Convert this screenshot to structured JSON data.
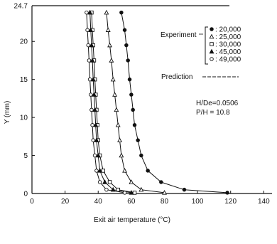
{
  "chart_data": {
    "type": "scatter",
    "xlabel": "Exit air temperature (°C)",
    "ylabel": "Y (mm)",
    "xlim": [
      0,
      145
    ],
    "ylim": [
      0,
      24.7
    ],
    "xticks": [
      0,
      20,
      40,
      60,
      80,
      100,
      120,
      140
    ],
    "xtick_labels": [
      "0",
      "20",
      "40",
      "60",
      "80",
      "100",
      "120",
      "140"
    ],
    "yticks": [
      0,
      5,
      10,
      15,
      20,
      24.7
    ],
    "ytick_labels": [
      "0",
      "5",
      "10",
      "15",
      "20",
      "24.7"
    ],
    "grid": false,
    "legend": {
      "title": "Experiment",
      "position": "top-right",
      "entries": [
        {
          "marker": "filled-circle",
          "label": ": 20,000"
        },
        {
          "marker": "open-triangle",
          "label": ": 25,000"
        },
        {
          "marker": "open-square",
          "label": ": 30,000"
        },
        {
          "marker": "filled-triangle",
          "label": ": 45,000"
        },
        {
          "marker": "open-circle",
          "label": ": 49,000"
        }
      ],
      "prediction_label": "Prediction"
    },
    "annotations": [
      "H/De=0.0506",
      "P/H = 10.8"
    ],
    "series": [
      {
        "marker": "filled-circle",
        "x": [
          54,
          56,
          57,
          58,
          59,
          60,
          61,
          62,
          64,
          66,
          70,
          78,
          92,
          118
        ],
        "y": [
          23.8,
          21.5,
          19.5,
          17.5,
          15.0,
          13.0,
          11.0,
          9.0,
          7.0,
          5.0,
          3.0,
          1.5,
          0.5,
          0.1
        ]
      },
      {
        "marker": "open-triangle",
        "x": [
          45,
          46,
          47,
          48,
          49,
          50,
          51,
          52,
          53,
          54,
          56,
          60,
          66,
          80
        ],
        "y": [
          23.8,
          21.5,
          19.5,
          17.5,
          15.0,
          13.0,
          11.0,
          9.0,
          7.0,
          5.0,
          3.0,
          1.5,
          0.5,
          0.1
        ]
      },
      {
        "marker": "open-square",
        "x": [
          36,
          36.5,
          37,
          37.5,
          38,
          38.5,
          39,
          39.5,
          40,
          41,
          43,
          47,
          52,
          62
        ],
        "y": [
          23.8,
          21.5,
          19.5,
          17.5,
          15.0,
          13.0,
          11.0,
          9.0,
          7.0,
          5.0,
          3.0,
          1.5,
          0.5,
          0.1
        ]
      },
      {
        "marker": "filled-triangle",
        "x": [
          35,
          35.5,
          36,
          36.5,
          37,
          37.5,
          38,
          38.5,
          39,
          40,
          41,
          44,
          49,
          60
        ],
        "y": [
          23.8,
          21.5,
          19.5,
          17.5,
          15.0,
          13.0,
          11.0,
          9.0,
          7.0,
          5.0,
          3.0,
          1.5,
          0.5,
          0.1
        ]
      },
      {
        "marker": "open-circle",
        "x": [
          33,
          33.5,
          34,
          34.5,
          35,
          35.5,
          36,
          36.5,
          37,
          38,
          39,
          41,
          45,
          56
        ],
        "y": [
          23.8,
          21.5,
          19.5,
          17.5,
          15.0,
          13.0,
          11.0,
          9.0,
          7.0,
          5.0,
          3.0,
          1.5,
          0.5,
          0.1
        ]
      }
    ]
  }
}
